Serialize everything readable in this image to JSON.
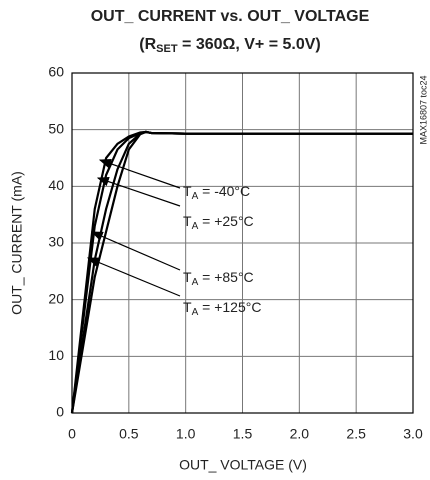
{
  "chart_data": {
    "type": "line",
    "title": "OUT_ CURRENT vs. OUT_ VOLTAGE",
    "subtitle": [
      "(R",
      "SET",
      " = 360Ω, V+ = 5.0V)"
    ],
    "x_label": "OUT_ VOLTAGE (V)",
    "y_label": "OUT_ CURRENT (mA)",
    "side_note": "MAX16807 toc24",
    "x": [
      0,
      0.2,
      0.3,
      0.4,
      0.5,
      0.6,
      0.65,
      0.7,
      1.0,
      2.0,
      3.0
    ],
    "series": [
      {
        "name": [
          "T",
          "A",
          " = -40°C"
        ],
        "color": "#000000",
        "values": [
          0,
          36,
          45,
          47.5,
          48.8,
          49.5,
          49.6,
          49.4,
          49.3,
          49.3,
          49.3
        ]
      },
      {
        "name": [
          "T",
          "A",
          " = +25°C"
        ],
        "color": "#000000",
        "values": [
          0,
          33,
          42,
          46.5,
          48.5,
          49.4,
          49.6,
          49.4,
          49.3,
          49.3,
          49.3
        ]
      },
      {
        "name": [
          "T",
          "A",
          " = +85°C"
        ],
        "color": "#000000",
        "values": [
          0,
          27,
          36,
          43,
          47.5,
          49.3,
          49.6,
          49.4,
          49.3,
          49.3,
          49.3
        ]
      },
      {
        "name": [
          "T",
          "A",
          " = +125°C"
        ],
        "color": "#000000",
        "values": [
          0,
          24,
          32,
          40,
          46.5,
          49.2,
          49.6,
          49.4,
          49.3,
          49.3,
          49.3
        ]
      }
    ],
    "xlim": [
      0,
      3
    ],
    "xticks": [
      0,
      0.5,
      {
        "value": 1,
        "label": "1.0"
      },
      1.5,
      {
        "value": 2,
        "label": "2.0"
      },
      2.5,
      {
        "value": 3,
        "label": "3.0"
      }
    ],
    "ylim": [
      0,
      60
    ],
    "yticks": [
      0,
      10,
      20,
      30,
      40,
      50,
      60
    ],
    "grid": true
  }
}
